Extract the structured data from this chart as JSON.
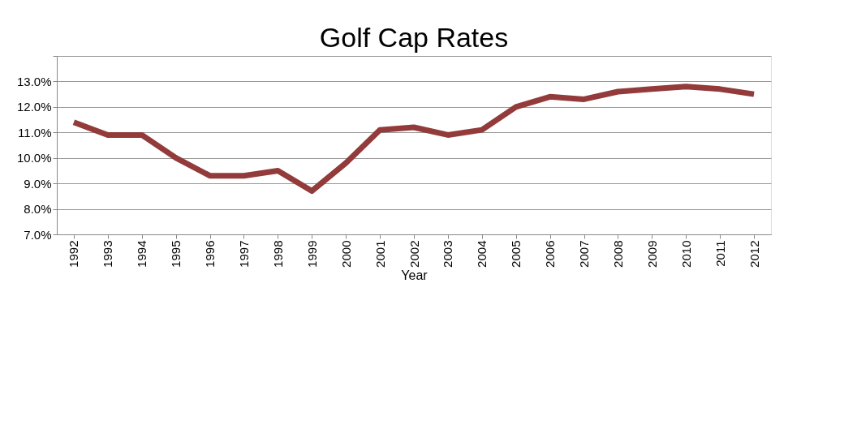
{
  "chart_data": {
    "type": "line",
    "title": "Golf Cap Rates",
    "xlabel": "Year",
    "categories": [
      "1992",
      "1993",
      "1994",
      "1995",
      "1996",
      "1997",
      "1998",
      "1999",
      "2000",
      "2001",
      "2002",
      "2003",
      "2004",
      "2005",
      "2006",
      "2007",
      "2008",
      "2009",
      "2010",
      "2011",
      "2012"
    ],
    "series": [
      {
        "color": "#933b3b",
        "values": [
          11.4,
          10.9,
          10.9,
          10.0,
          9.3,
          9.3,
          9.5,
          8.7,
          9.8,
          11.1,
          11.2,
          10.9,
          11.1,
          12.0,
          12.4,
          12.3,
          12.6,
          12.7,
          12.8,
          12.7,
          12.5
        ]
      }
    ],
    "ylim": [
      7,
      14
    ],
    "yticks": [
      {
        "value": 7,
        "label": "7.0%"
      },
      {
        "value": 8,
        "label": "8.0%"
      },
      {
        "value": 9,
        "label": "9.0%"
      },
      {
        "value": 10,
        "label": "10.0%"
      },
      {
        "value": 11,
        "label": "11.0%"
      },
      {
        "value": 12,
        "label": "12.0%"
      },
      {
        "value": 13,
        "label": "13.0%"
      },
      {
        "value": 14,
        "label": null
      }
    ],
    "grid": "y",
    "marker": "none",
    "line_style": "solid"
  }
}
